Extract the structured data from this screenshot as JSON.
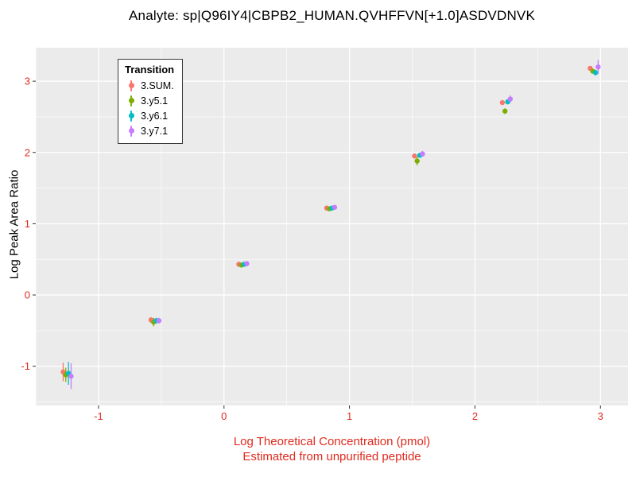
{
  "title": "Analyte: sp|Q96IY4|CBPB2_HUMAN.QVHFFVN[+1.0]ASDVDNVK",
  "axes": {
    "y_label": "Log Peak Area Ratio",
    "x_label_line1": "Log Theoretical Concentration (pmol)",
    "x_label_line2": "Estimated from unpurified peptide"
  },
  "legend": {
    "title": "Transition"
  },
  "colors": {
    "plot_bg": "#EBEBEB",
    "grid": "#FFFFFF",
    "tick_mark": "#333333",
    "axis_text_red": "#E02A1E",
    "title_text": "#000000"
  },
  "chart_data": {
    "type": "scatter",
    "title": "Analyte: sp|Q96IY4|CBPB2_HUMAN.QVHFFVN[+1.0]ASDVDNVK",
    "xlabel": "Log Theoretical Concentration (pmol)",
    "xlabel_note": "Estimated from unpurified peptide",
    "ylabel": "Log Peak Area Ratio",
    "legend_title": "Transition",
    "legend_position": "top-left-inside",
    "grid": true,
    "x": [
      -1.25,
      -0.55,
      0.15,
      0.85,
      1.55,
      2.25,
      2.95
    ],
    "xticks": [
      -1,
      0,
      1,
      2,
      3
    ],
    "yticks": [
      -1,
      0,
      1,
      2,
      3
    ],
    "xlim": [
      -1.5,
      3.22
    ],
    "ylim": [
      -1.55,
      3.47
    ],
    "series": [
      {
        "name": "3.SUM.",
        "color": "#F8766D",
        "y": [
          -1.08,
          -0.35,
          0.43,
          1.22,
          1.95,
          2.7,
          3.18
        ],
        "err": [
          0.13,
          0.04,
          0.02,
          0.02,
          0.03,
          0.03,
          0.03
        ]
      },
      {
        "name": "3.y5.1",
        "color": "#7CAE00",
        "y": [
          -1.12,
          -0.38,
          0.42,
          1.21,
          1.88,
          2.58,
          3.14
        ],
        "err": [
          0.1,
          0.06,
          0.02,
          0.02,
          0.06,
          0.04,
          0.03
        ]
      },
      {
        "name": "3.y6.1",
        "color": "#00BFC4",
        "y": [
          -1.1,
          -0.36,
          0.43,
          1.22,
          1.96,
          2.71,
          3.12
        ],
        "err": [
          0.16,
          0.04,
          0.02,
          0.02,
          0.03,
          0.03,
          0.04
        ]
      },
      {
        "name": "3.y7.1",
        "color": "#C77CFF",
        "y": [
          -1.14,
          -0.36,
          0.44,
          1.23,
          1.98,
          2.75,
          3.2
        ],
        "err": [
          0.18,
          0.04,
          0.02,
          0.02,
          0.04,
          0.05,
          0.1
        ]
      }
    ]
  }
}
